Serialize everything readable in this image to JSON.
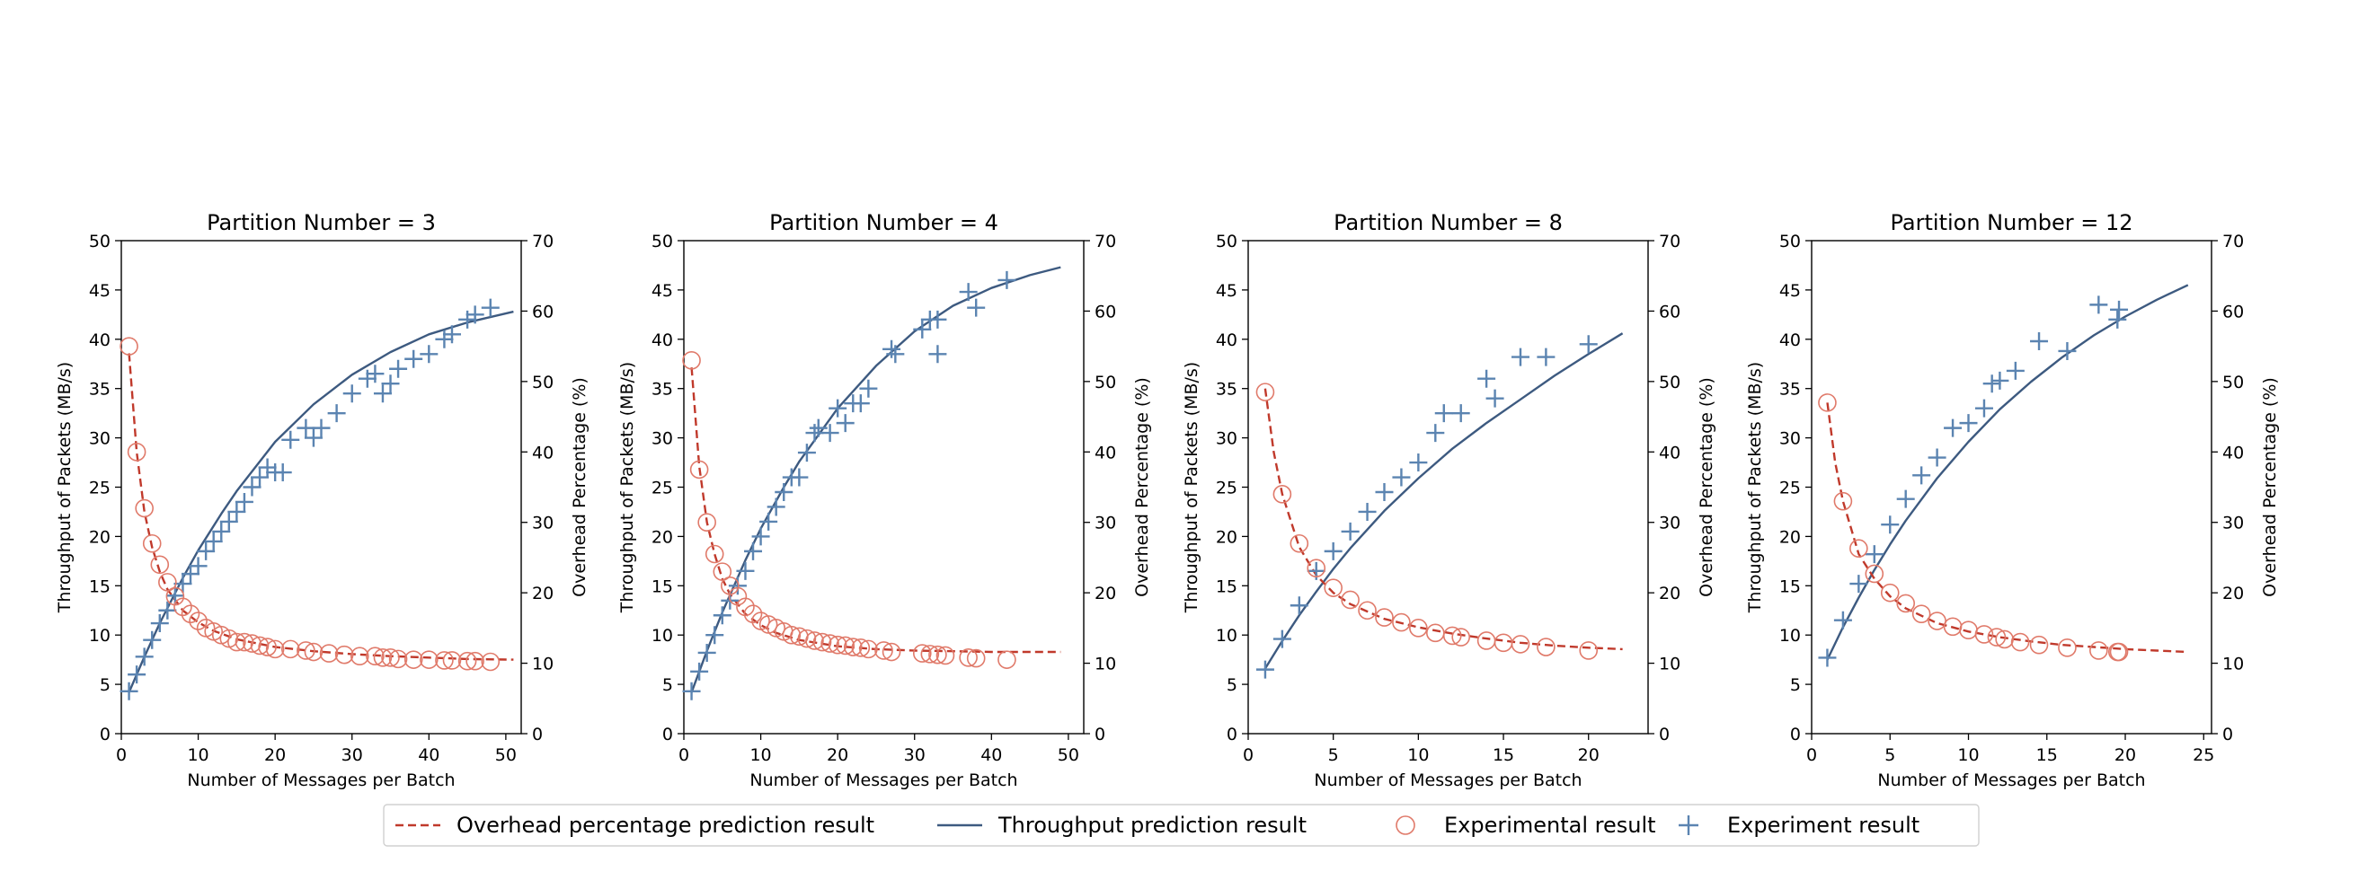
{
  "legend": {
    "location": "bottom-center",
    "entries": [
      {
        "label": "Overhead percentage prediction result",
        "kind": "dashed-line",
        "color": "#c0392b"
      },
      {
        "label": "Throughput prediction result",
        "kind": "solid-line",
        "color": "#3d5a80"
      },
      {
        "label": "Experimental result",
        "kind": "circle-marker",
        "color": "#e07a6a"
      },
      {
        "label": "Experiment result",
        "kind": "plus-marker",
        "color": "#5b84b1"
      }
    ]
  },
  "chart_data": [
    {
      "type": "scatter",
      "title": "Partition Number = 3",
      "xlabel": "Number of Messages per Batch",
      "ylabel": "Throughput of Packets (MB/s)",
      "y2label": "Overhead Percentage (%)",
      "xlim": [
        0,
        52
      ],
      "ylim": [
        0,
        50
      ],
      "y2lim": [
        0,
        70
      ],
      "xticks": [
        0,
        10,
        20,
        30,
        40,
        50
      ],
      "yticks": [
        0,
        5,
        10,
        15,
        20,
        25,
        30,
        35,
        40,
        45,
        50
      ],
      "y2ticks": [
        0,
        10,
        20,
        30,
        40,
        50,
        60,
        70
      ],
      "grid": false,
      "series": [
        {
          "name": "Throughput prediction result",
          "axis": "left",
          "style": "line",
          "x": [
            1,
            3,
            5,
            8,
            10,
            13,
            15,
            20,
            25,
            30,
            35,
            40,
            45,
            51
          ],
          "y": [
            4.2,
            7.8,
            11.2,
            15.8,
            18.6,
            22.3,
            24.6,
            29.6,
            33.4,
            36.4,
            38.7,
            40.5,
            41.7,
            42.8
          ]
        },
        {
          "name": "Overhead percentage prediction result",
          "axis": "right",
          "style": "line",
          "x": [
            1,
            2,
            3,
            4,
            5,
            6,
            8,
            10,
            12,
            15,
            20,
            25,
            30,
            35,
            40,
            45,
            51
          ],
          "y": [
            54,
            40,
            31.5,
            26.5,
            23,
            20.5,
            17.5,
            15.8,
            14.6,
            13.4,
            12.3,
            11.7,
            11.3,
            11,
            10.8,
            10.6,
            10.5
          ]
        },
        {
          "name": "Experiment result",
          "axis": "left",
          "style": "plus",
          "x": [
            1,
            2,
            3,
            4,
            5,
            6,
            7,
            8,
            9,
            10,
            11,
            12,
            13,
            14,
            15,
            16,
            17,
            18,
            19,
            20,
            21,
            22,
            24,
            25,
            26,
            28,
            30,
            32,
            33,
            34,
            35,
            36,
            38,
            40,
            42,
            43,
            45,
            46,
            48
          ],
          "y": [
            4.3,
            6,
            7.8,
            9.5,
            11.2,
            12.5,
            14,
            15.2,
            16.2,
            17,
            18.5,
            19.5,
            20.5,
            21.5,
            22.5,
            23.5,
            25,
            26,
            27,
            26.5,
            26.5,
            29.8,
            31,
            30,
            31,
            32.5,
            34.5,
            36,
            36.5,
            34.5,
            35.5,
            37,
            38,
            38.5,
            40,
            40.5,
            42,
            42.5,
            43.2
          ]
        },
        {
          "name": "Experimental result",
          "axis": "right",
          "style": "circle",
          "x": [
            1,
            2,
            3,
            4,
            5,
            6,
            7,
            8,
            9,
            10,
            11,
            12,
            13,
            14,
            15,
            16,
            17,
            18,
            19,
            20,
            22,
            24,
            25,
            27,
            29,
            31,
            33,
            34,
            35,
            36,
            38,
            40,
            42,
            43,
            45,
            46,
            48
          ],
          "y": [
            55,
            40,
            32,
            27,
            24,
            21.5,
            19.5,
            18,
            17,
            16,
            15,
            14.5,
            14,
            13.5,
            13,
            13,
            12.8,
            12.5,
            12.3,
            12,
            12,
            11.8,
            11.6,
            11.4,
            11.2,
            11,
            11,
            10.8,
            10.8,
            10.6,
            10.5,
            10.5,
            10.4,
            10.4,
            10.3,
            10.3,
            10.2
          ]
        }
      ]
    },
    {
      "type": "scatter",
      "title": "Partition Number = 4",
      "xlabel": "Number of Messages per Batch",
      "ylabel": "Throughput of Packets (MB/s)",
      "y2label": "Overhead Percentage (%)",
      "xlim": [
        0,
        52
      ],
      "ylim": [
        0,
        50
      ],
      "y2lim": [
        0,
        70
      ],
      "xticks": [
        0,
        10,
        20,
        30,
        40,
        50
      ],
      "yticks": [
        0,
        5,
        10,
        15,
        20,
        25,
        30,
        35,
        40,
        45,
        50
      ],
      "y2ticks": [
        0,
        10,
        20,
        30,
        40,
        50,
        60,
        70
      ],
      "grid": false,
      "series": [
        {
          "name": "Throughput prediction result",
          "axis": "left",
          "style": "line",
          "x": [
            1,
            3,
            5,
            8,
            10,
            13,
            15,
            20,
            25,
            30,
            35,
            40,
            45,
            49
          ],
          "y": [
            4.2,
            8.4,
            12.3,
            17.6,
            20.8,
            25.0,
            27.6,
            33.0,
            37.3,
            40.8,
            43.4,
            45.2,
            46.5,
            47.3
          ]
        },
        {
          "name": "Overhead percentage prediction result",
          "axis": "right",
          "style": "line",
          "x": [
            1,
            2,
            3,
            4,
            5,
            6,
            8,
            10,
            12,
            15,
            20,
            25,
            30,
            35,
            40,
            45,
            49
          ],
          "y": [
            52,
            38,
            30,
            25.5,
            22,
            19.8,
            17,
            15.4,
            14.3,
            13.3,
            12.4,
            12,
            11.8,
            11.7,
            11.6,
            11.6,
            11.6
          ]
        },
        {
          "name": "Experiment result",
          "axis": "left",
          "style": "plus",
          "x": [
            1,
            2,
            3,
            4,
            5,
            6,
            7,
            8,
            9,
            10,
            11,
            12,
            13,
            14,
            15,
            16,
            17,
            17.5,
            19,
            20,
            21,
            22,
            23,
            24,
            27,
            27.5,
            31,
            32,
            33,
            33,
            37,
            38,
            42
          ],
          "y": [
            4.3,
            6.3,
            8.2,
            10,
            12,
            13.5,
            15,
            16.5,
            18.5,
            20,
            21.5,
            23,
            24.5,
            26,
            26,
            28.5,
            30.5,
            31,
            30.5,
            33,
            31.5,
            33.5,
            33.5,
            35,
            39,
            38.5,
            41,
            42,
            38.5,
            42,
            44.8,
            43.2,
            46
          ]
        },
        {
          "name": "Experimental result",
          "axis": "right",
          "style": "circle",
          "x": [
            1,
            2,
            3,
            4,
            5,
            6,
            7,
            8,
            9,
            10,
            11,
            12,
            13,
            14,
            15,
            16,
            17,
            18,
            19,
            20,
            21,
            22,
            23,
            24,
            26,
            27,
            31,
            32,
            33,
            34,
            37,
            38,
            42
          ],
          "y": [
            53,
            37.5,
            30,
            25.5,
            23,
            21,
            19.5,
            18,
            17,
            16,
            15.5,
            15,
            14.5,
            14,
            13.8,
            13.5,
            13.2,
            13,
            12.8,
            12.6,
            12.5,
            12.3,
            12.2,
            12,
            11.8,
            11.6,
            11.4,
            11.3,
            11.2,
            11.1,
            10.8,
            10.7,
            10.5
          ]
        }
      ]
    },
    {
      "type": "scatter",
      "title": "Partition Number = 8",
      "xlabel": "Number of Messages per Batch",
      "ylabel": "Throughput of Packets (MB/s)",
      "y2label": "Overhead Percentage (%)",
      "xlim": [
        0,
        23.5
      ],
      "ylim": [
        0,
        50
      ],
      "y2lim": [
        0,
        70
      ],
      "xticks": [
        0,
        5,
        10,
        15,
        20
      ],
      "yticks": [
        0,
        5,
        10,
        15,
        20,
        25,
        30,
        35,
        40,
        45,
        50
      ],
      "y2ticks": [
        0,
        10,
        20,
        30,
        40,
        50,
        60,
        70
      ],
      "grid": false,
      "series": [
        {
          "name": "Throughput prediction result",
          "axis": "left",
          "style": "line",
          "x": [
            1,
            2,
            3,
            4,
            5,
            6,
            8,
            10,
            12,
            14,
            16,
            18,
            20,
            22
          ],
          "y": [
            6.6,
            9.4,
            12.0,
            14.4,
            16.7,
            18.8,
            22.6,
            25.9,
            28.9,
            31.5,
            33.9,
            36.3,
            38.5,
            40.6
          ]
        },
        {
          "name": "Overhead percentage prediction result",
          "axis": "right",
          "style": "line",
          "x": [
            1,
            1.5,
            2,
            3,
            4,
            5,
            6,
            8,
            10,
            12,
            14,
            16,
            18,
            20,
            22
          ],
          "y": [
            49,
            40,
            34,
            26.5,
            22.5,
            20,
            18.4,
            16.3,
            15.1,
            14.2,
            13.5,
            12.9,
            12.5,
            12.2,
            12
          ]
        },
        {
          "name": "Experiment result",
          "axis": "left",
          "style": "plus",
          "x": [
            1,
            2,
            3,
            4,
            5,
            6,
            7,
            8,
            9,
            10,
            11,
            11.5,
            12.5,
            14,
            14.5,
            16,
            17.5,
            20
          ],
          "y": [
            6.5,
            9.6,
            13,
            16.5,
            18.5,
            20.5,
            22.5,
            24.5,
            26,
            27.5,
            30.5,
            32.5,
            32.5,
            36,
            34,
            38.2,
            38.2,
            39.5
          ]
        },
        {
          "name": "Experimental result",
          "axis": "right",
          "style": "circle",
          "x": [
            1,
            2,
            3,
            4,
            5,
            6,
            7,
            8,
            9,
            10,
            11,
            12,
            12.5,
            14,
            15,
            16,
            17.5,
            20
          ],
          "y": [
            48.5,
            34,
            27,
            23.5,
            20.7,
            19,
            17.5,
            16.5,
            15.8,
            15,
            14.3,
            13.9,
            13.7,
            13.2,
            12.9,
            12.7,
            12.3,
            11.8
          ]
        }
      ]
    },
    {
      "type": "scatter",
      "title": "Partition Number = 12",
      "xlabel": "Number of Messages per Batch",
      "ylabel": "Throughput of Packets (MB/s)",
      "y2label": "Overhead Percentage (%)",
      "xlim": [
        0,
        25.5
      ],
      "ylim": [
        0,
        50
      ],
      "y2lim": [
        0,
        70
      ],
      "xticks": [
        0,
        5,
        10,
        15,
        20,
        25
      ],
      "yticks": [
        0,
        5,
        10,
        15,
        20,
        25,
        30,
        35,
        40,
        45,
        50
      ],
      "y2ticks": [
        0,
        10,
        20,
        30,
        40,
        50,
        60,
        70
      ],
      "grid": false,
      "series": [
        {
          "name": "Throughput prediction result",
          "axis": "left",
          "style": "line",
          "x": [
            1,
            2,
            3,
            4,
            5,
            6,
            8,
            10,
            12,
            14,
            16,
            18,
            20,
            22,
            24
          ],
          "y": [
            7.5,
            10.8,
            13.8,
            16.6,
            19.2,
            21.6,
            25.9,
            29.6,
            32.9,
            35.7,
            38.2,
            40.4,
            42.3,
            44.0,
            45.5
          ]
        },
        {
          "name": "Overhead percentage prediction result",
          "axis": "right",
          "style": "line",
          "x": [
            1,
            1.5,
            2,
            3,
            4,
            5,
            6,
            8,
            10,
            12,
            14,
            16,
            18,
            20,
            22,
            24
          ],
          "y": [
            47,
            38.5,
            33,
            25.5,
            22,
            19.5,
            17.8,
            15.7,
            14.5,
            13.7,
            13.1,
            12.6,
            12.3,
            12,
            11.8,
            11.6
          ]
        },
        {
          "name": "Experiment result",
          "axis": "left",
          "style": "plus",
          "x": [
            1,
            2,
            3,
            4,
            5,
            6,
            7,
            8,
            9,
            10,
            11,
            11.5,
            12,
            13,
            14.5,
            16.3,
            18.3,
            19.5,
            19.6
          ],
          "y": [
            7.7,
            11.5,
            15.2,
            18.2,
            21.2,
            23.8,
            26.2,
            28,
            31,
            31.5,
            33,
            35.5,
            35.8,
            36.8,
            39.8,
            38.8,
            43.5,
            42,
            43
          ]
        },
        {
          "name": "Experimental result",
          "axis": "right",
          "style": "circle",
          "x": [
            1,
            2,
            3,
            4,
            5,
            6,
            7,
            8,
            9,
            10,
            11,
            11.8,
            12.3,
            13.3,
            14.5,
            16.3,
            18.3,
            19.5,
            19.6
          ],
          "y": [
            47,
            33,
            26.3,
            22.7,
            20,
            18.5,
            17,
            16,
            15.2,
            14.7,
            14.1,
            13.7,
            13.4,
            13,
            12.6,
            12.2,
            11.8,
            11.6,
            11.6
          ]
        }
      ]
    }
  ]
}
